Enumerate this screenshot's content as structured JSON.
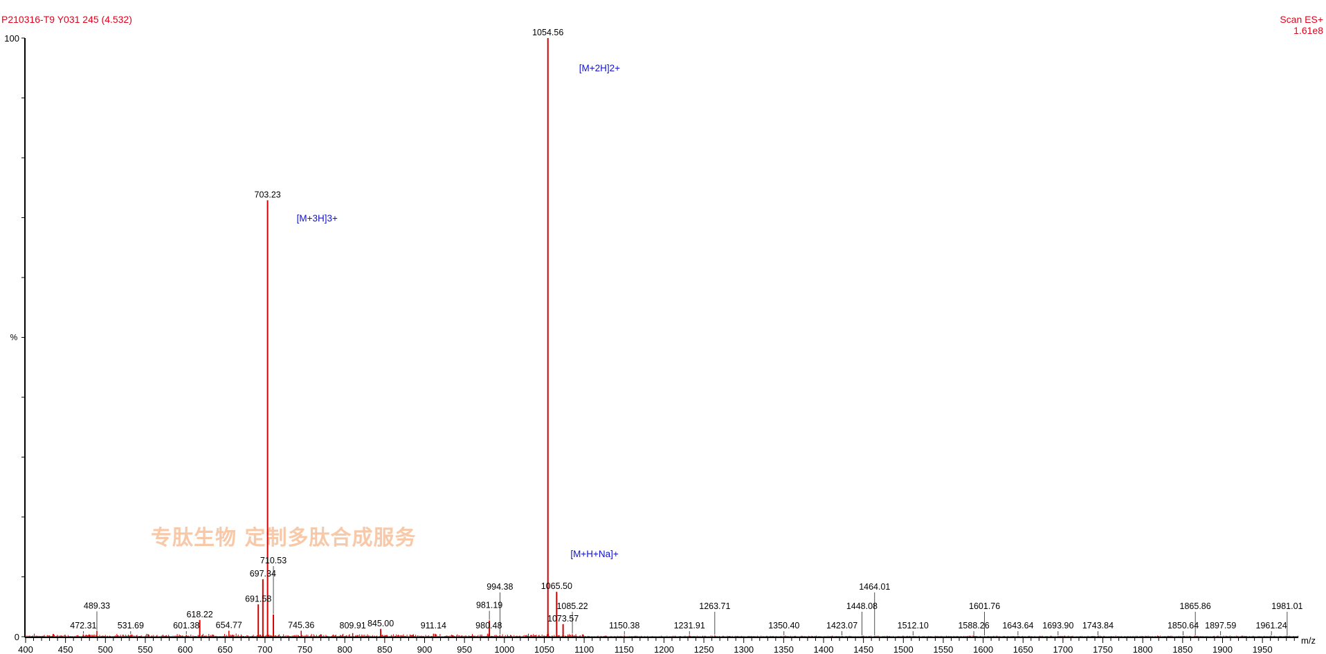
{
  "header": {
    "sample": "P210316-T9 Y031 245 (4.532)",
    "scan_mode": "Scan ES+",
    "base_intensity": "1.61e8"
  },
  "watermark": "专肽生物  定制多肽合成服务",
  "colors": {
    "peak": "#d40000",
    "annotation": "#1010d0",
    "header": "#e3001b",
    "watermark": "#f7c9a8",
    "axis": "#000000"
  },
  "chart_data": {
    "type": "bar",
    "subtype": "mass-spectrum",
    "xlabel": "m/z",
    "ylabel": "%",
    "xlim": [
      400,
      2000
    ],
    "ylim": [
      0,
      100
    ],
    "x_tick_labels": [
      "400",
      "450",
      "500",
      "550",
      "600",
      "650",
      "700",
      "750",
      "800",
      "850",
      "900",
      "950",
      "1000",
      "1050",
      "1100",
      "1150",
      "1200",
      "1250",
      "1300",
      "1350",
      "1400",
      "1450",
      "1500",
      "1550",
      "1600",
      "1650",
      "1700",
      "1750",
      "1800",
      "1850",
      "1900",
      "1950"
    ],
    "y_tick_labels": [
      "0",
      "100"
    ],
    "grid": false,
    "peaks": [
      {
        "mz": 472.31,
        "label": "472.31",
        "intensity": 0.4
      },
      {
        "mz": 489.33,
        "label": "489.33",
        "intensity": 1.0
      },
      {
        "mz": 531.69,
        "label": "531.69",
        "intensity": 0.3
      },
      {
        "mz": 601.38,
        "label": "601.38",
        "intensity": 0.3
      },
      {
        "mz": 618.22,
        "label": "618.22",
        "intensity": 2.8
      },
      {
        "mz": 654.77,
        "label": "654.77",
        "intensity": 1.0
      },
      {
        "mz": 691.58,
        "label": "691.58",
        "intensity": 5.4
      },
      {
        "mz": 697.34,
        "label": "697.34",
        "intensity": 9.6
      },
      {
        "mz": 703.23,
        "label": "703.23",
        "intensity": 72.9
      },
      {
        "mz": 710.53,
        "label": "710.53",
        "intensity": 3.7
      },
      {
        "mz": 745.36,
        "label": "745.36",
        "intensity": 1.0
      },
      {
        "mz": 809.91,
        "label": "809.91",
        "intensity": 0.6
      },
      {
        "mz": 845.0,
        "label": "845.00",
        "intensity": 1.3
      },
      {
        "mz": 911.14,
        "label": "911.14",
        "intensity": 0.5
      },
      {
        "mz": 980.48,
        "label": "980.48",
        "intensity": 0.5
      },
      {
        "mz": 981.19,
        "label": "981.19",
        "intensity": 2.7
      },
      {
        "mz": 994.38,
        "label": "994.38",
        "intensity": 0.3
      },
      {
        "mz": 1054.56,
        "label": "1054.56",
        "intensity": 100
      },
      {
        "mz": 1065.5,
        "label": "1065.50",
        "intensity": 7.5
      },
      {
        "mz": 1073.57,
        "label": "1073.57",
        "intensity": 2.1
      },
      {
        "mz": 1085.22,
        "label": "1085.22",
        "intensity": 0.4
      },
      {
        "mz": 1150.38,
        "label": "1150.38",
        "intensity": 0.2
      },
      {
        "mz": 1231.91,
        "label": "1231.91",
        "intensity": 0.2
      },
      {
        "mz": 1263.71,
        "label": "1263.71",
        "intensity": 0.2
      },
      {
        "mz": 1350.4,
        "label": "1350.40",
        "intensity": 0.1
      },
      {
        "mz": 1423.07,
        "label": "1423.07",
        "intensity": 0.1
      },
      {
        "mz": 1448.08,
        "label": "1448.08",
        "intensity": 0.1
      },
      {
        "mz": 1464.01,
        "label": "1464.01",
        "intensity": 0.1
      },
      {
        "mz": 1512.1,
        "label": "1512.10",
        "intensity": 0.1
      },
      {
        "mz": 1588.26,
        "label": "1588.26",
        "intensity": 0.1
      },
      {
        "mz": 1601.76,
        "label": "1601.76",
        "intensity": 0.1
      },
      {
        "mz": 1643.64,
        "label": "1643.64",
        "intensity": 0.1
      },
      {
        "mz": 1693.9,
        "label": "1693.90",
        "intensity": 0.1
      },
      {
        "mz": 1743.84,
        "label": "1743.84",
        "intensity": 0.1
      },
      {
        "mz": 1850.64,
        "label": "1850.64",
        "intensity": 0.1
      },
      {
        "mz": 1865.86,
        "label": "1865.86",
        "intensity": 0.1
      },
      {
        "mz": 1897.59,
        "label": "1897.59",
        "intensity": 0.1
      },
      {
        "mz": 1961.24,
        "label": "1961.24",
        "intensity": 0.1
      },
      {
        "mz": 1981.01,
        "label": "1981.01",
        "intensity": 0.1
      }
    ],
    "annotations": [
      {
        "text": "[M+2H]2+",
        "mz": 1054.56
      },
      {
        "text": "[M+3H]3+",
        "mz": 703.23
      },
      {
        "text": "[M+H+Na]+",
        "mz": 1065.5
      }
    ]
  }
}
